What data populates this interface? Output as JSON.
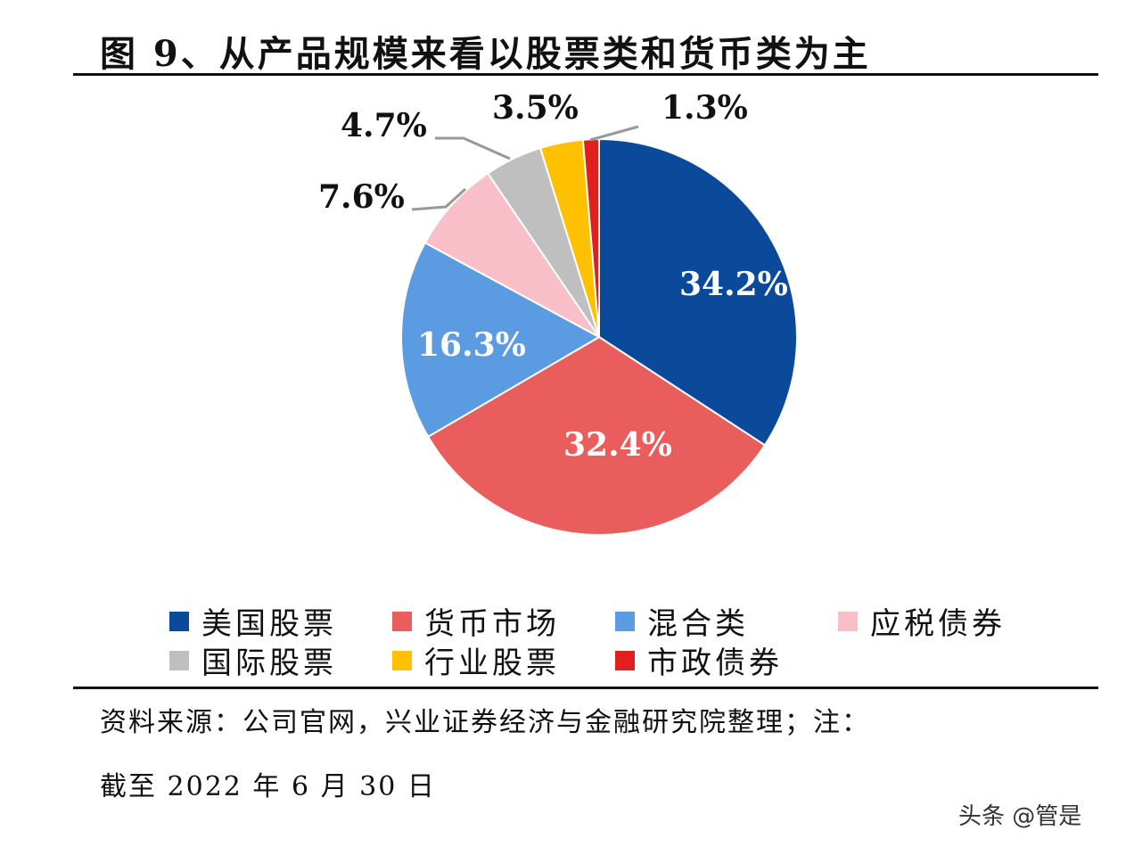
{
  "title": "图 9、从产品规模来看以股票类和货币类为主",
  "chart_data": {
    "type": "pie",
    "title": "图 9、从产品规模来看以股票类和货币类为主",
    "start": "top",
    "direction": "clockwise",
    "legend_position": "bottom",
    "slices": [
      {
        "name": "美国股票",
        "value": 34.2,
        "label": "34.2%",
        "color": "#0b4a9b"
      },
      {
        "name": "货币市场",
        "value": 32.4,
        "label": "32.4%",
        "color": "#e95d5d"
      },
      {
        "name": "混合类",
        "value": 16.3,
        "label": "16.3%",
        "color": "#5b9be1"
      },
      {
        "name": "应税债券",
        "value": 7.6,
        "label": "7.6%",
        "color": "#f8bfc9"
      },
      {
        "name": "国际股票",
        "value": 4.7,
        "label": "4.7%",
        "color": "#bfbfbf"
      },
      {
        "name": "行业股票",
        "value": 3.5,
        "label": "3.5%",
        "color": "#ffc000"
      },
      {
        "name": "市政债券",
        "value": 1.3,
        "label": "1.3%",
        "color": "#e0201e"
      }
    ]
  },
  "source_line1": "资料来源：公司官网，兴业证券经济与金融研究院整理；注：",
  "source_line2": "截至 2022 年 6 月 30 日",
  "watermark": "头条 @管是"
}
